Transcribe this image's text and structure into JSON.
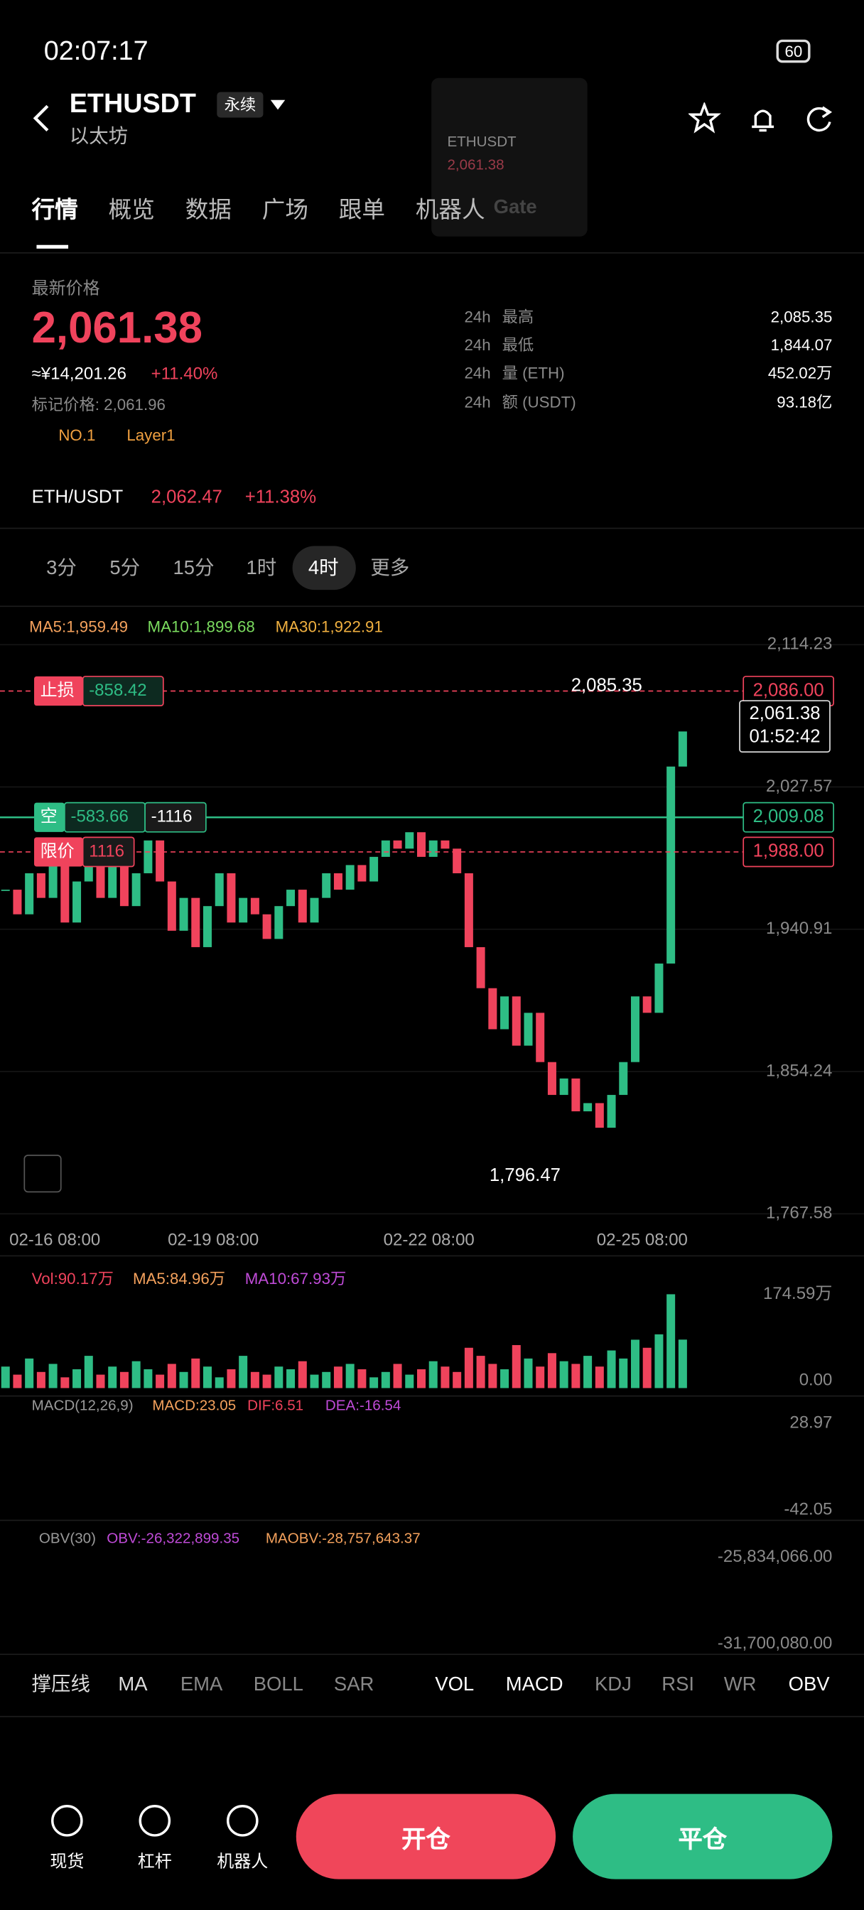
{
  "status": {
    "time": "02:07:17",
    "battery": "60"
  },
  "header": {
    "symbol": "ETHUSDT",
    "tag": "永续",
    "subtitle": "以太坊"
  },
  "float_window": {
    "symbol": "ETHUSDT",
    "price": "2,061.38",
    "brand": "Gate"
  },
  "tabs": [
    "行情",
    "概览",
    "数据",
    "广场",
    "跟单",
    "机器人"
  ],
  "price": {
    "label": "最新价格",
    "last": "2,061.38",
    "cny": "≈¥14,201.26",
    "change": "+11.40%",
    "mark": "标记价格: 2,061.96",
    "rank": "NO.1",
    "sector": "Layer1"
  },
  "stats": [
    {
      "period": "24h",
      "label": "最高",
      "value": "2,085.35"
    },
    {
      "period": "24h",
      "label": "最低",
      "value": "1,844.07"
    },
    {
      "period": "24h",
      "label": "量 (ETH)",
      "value": "452.02万"
    },
    {
      "period": "24h",
      "label": "额 (USDT)",
      "value": "93.18亿"
    }
  ],
  "pair": {
    "name": "ETH/USDT",
    "price": "2,062.47",
    "change": "+11.38%"
  },
  "intervals": [
    "3分",
    "5分",
    "15分",
    "1时",
    "4时",
    "更多"
  ],
  "kline": {
    "ma": [
      {
        "text": "MA5:1,959.49",
        "color": "#f5a25d"
      },
      {
        "text": "MA10:1,899.68",
        "color": "#7bdc5f"
      },
      {
        "text": "MA30:1,922.91",
        "color": "#f0b040"
      }
    ],
    "ylim": [
      1767.58,
      2114.23
    ],
    "yticks": [
      {
        "value": 2114.23,
        "label": "2,114.23"
      },
      {
        "value": 2027.57,
        "label": "2,027.57"
      },
      {
        "value": 1940.91,
        "label": "1,940.91"
      },
      {
        "value": 1854.24,
        "label": "1,854.24"
      },
      {
        "value": 1767.58,
        "label": "1,767.58"
      }
    ],
    "x_labels": [
      "02-16 08:00",
      "02-19 08:00",
      "02-22 08:00",
      "02-25 08:00"
    ],
    "closes": [
      1965,
      1950,
      1975,
      1960,
      1985,
      1945,
      1970,
      1990,
      1960,
      1980,
      1955,
      1975,
      1995,
      1970,
      1940,
      1960,
      1930,
      1955,
      1975,
      1945,
      1960,
      1950,
      1935,
      1955,
      1965,
      1945,
      1960,
      1975,
      1965,
      1980,
      1970,
      1985,
      1995,
      1990,
      2000,
      1985,
      1995,
      1990,
      1975,
      1930,
      1905,
      1880,
      1900,
      1870,
      1890,
      1860,
      1840,
      1850,
      1830,
      1835,
      1820,
      1840,
      1860,
      1900,
      1890,
      1920,
      2040,
      2061.38
    ],
    "high_label": "2,085.35",
    "low_label": "1,796.47",
    "current": {
      "price": "2,061.38",
      "countdown": "01:52:42"
    },
    "orders": [
      {
        "value": 2086.0,
        "label": "2,086.00",
        "kind": "止损",
        "pnl": "-858.42",
        "color": "#f0435c",
        "dashed": true
      },
      {
        "value": 2009.08,
        "label": "2,009.08",
        "kind": "空",
        "pnl": "-583.66",
        "qty": "-1116",
        "color": "#2ebd85",
        "dashed": false
      },
      {
        "value": 1988.0,
        "label": "1,988.00",
        "kind": "限价",
        "qty": "1116",
        "color": "#f0435c",
        "dashed": true
      }
    ]
  },
  "volume": {
    "labels": [
      {
        "text": "Vol:90.17万",
        "color": "#f0435c"
      },
      {
        "text": "MA5:84.96万",
        "color": "#f5a25d"
      },
      {
        "text": "MA10:67.93万",
        "color": "#c04bd8"
      }
    ],
    "ylim": [
      0,
      174.59
    ],
    "yticks": [
      {
        "value": 174.59,
        "label": "174.59万"
      },
      {
        "value": 0,
        "label": "0.00"
      }
    ],
    "values": [
      40,
      25,
      55,
      30,
      45,
      20,
      35,
      60,
      25,
      40,
      30,
      50,
      35,
      25,
      45,
      30,
      55,
      40,
      20,
      35,
      60,
      30,
      25,
      40,
      35,
      50,
      25,
      30,
      40,
      45,
      35,
      20,
      30,
      45,
      25,
      35,
      50,
      40,
      30,
      75,
      60,
      45,
      35,
      80,
      55,
      40,
      65,
      50,
      45,
      60,
      40,
      70,
      55,
      90,
      75,
      100,
      174.59,
      90.17
    ]
  },
  "macd": {
    "labels": [
      {
        "text": "MACD(12,26,9)",
        "color": "#9a9a9a"
      },
      {
        "text": "MACD:23.05",
        "color": "#f5a25d"
      },
      {
        "text": "DIF:6.51",
        "color": "#f0435c"
      },
      {
        "text": "DEA:-16.54",
        "color": "#c04bd8"
      }
    ],
    "axis": [
      "28.97",
      "-42.05"
    ]
  },
  "obv": {
    "labels": [
      {
        "text": "OBV(30)",
        "color": "#9a9a9a"
      },
      {
        "text": "OBV:-26,322,899.35",
        "color": "#c04bd8"
      },
      {
        "text": "MAOBV:-28,757,643.37",
        "color": "#f5a25d"
      }
    ],
    "axis": [
      "-25,834,066.00",
      "-31,700,080.00"
    ]
  },
  "indicators": {
    "main": [
      "撑压线",
      "MA",
      "EMA",
      "BOLL",
      "SAR"
    ],
    "sub": [
      "VOL",
      "MACD",
      "KDJ",
      "RSI",
      "WR",
      "OBV"
    ]
  },
  "bottom": {
    "items": [
      "现货",
      "杠杆",
      "机器人"
    ],
    "open": "开仓",
    "close": "平仓"
  }
}
